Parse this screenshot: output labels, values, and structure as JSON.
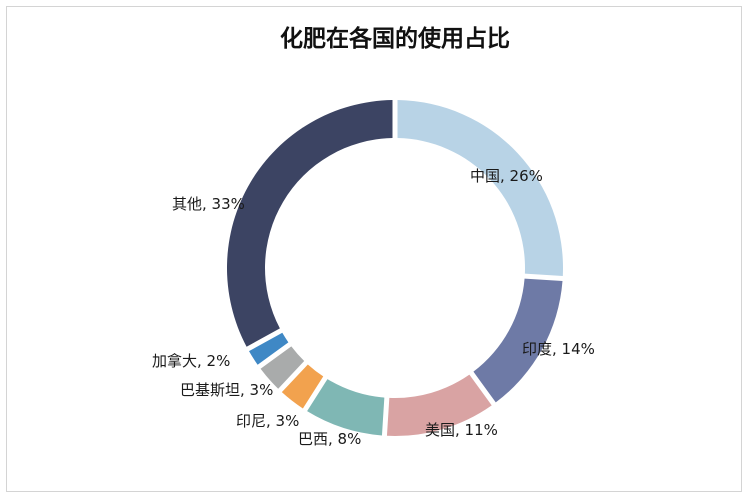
{
  "chart_data": {
    "type": "pie",
    "style": "donut",
    "title": "化肥在各国的使用占比",
    "legend": "none",
    "slices": [
      {
        "name": "中国",
        "value": 26,
        "label": "中国, 26%",
        "color": "#b8d3e6"
      },
      {
        "name": "印度",
        "value": 14,
        "label": "印度, 14%",
        "color": "#6e7aa6"
      },
      {
        "name": "美国",
        "value": 11,
        "label": "美国, 11%",
        "color": "#d9a3a3"
      },
      {
        "name": "巴西",
        "value": 8,
        "label": "巴西, 8%",
        "color": "#7fb7b4"
      },
      {
        "name": "印尼",
        "value": 3,
        "label": "印尼, 3%",
        "color": "#f2a24e"
      },
      {
        "name": "巴基斯坦",
        "value": 3,
        "label": "巴基斯坦, 3%",
        "color": "#a9abab"
      },
      {
        "name": "加拿大",
        "value": 2,
        "label": "加拿大, 2%",
        "color": "#3f88c5"
      },
      {
        "name": "其他",
        "value": 33,
        "label": "其他, 33%",
        "color": "#3c4463"
      }
    ]
  }
}
